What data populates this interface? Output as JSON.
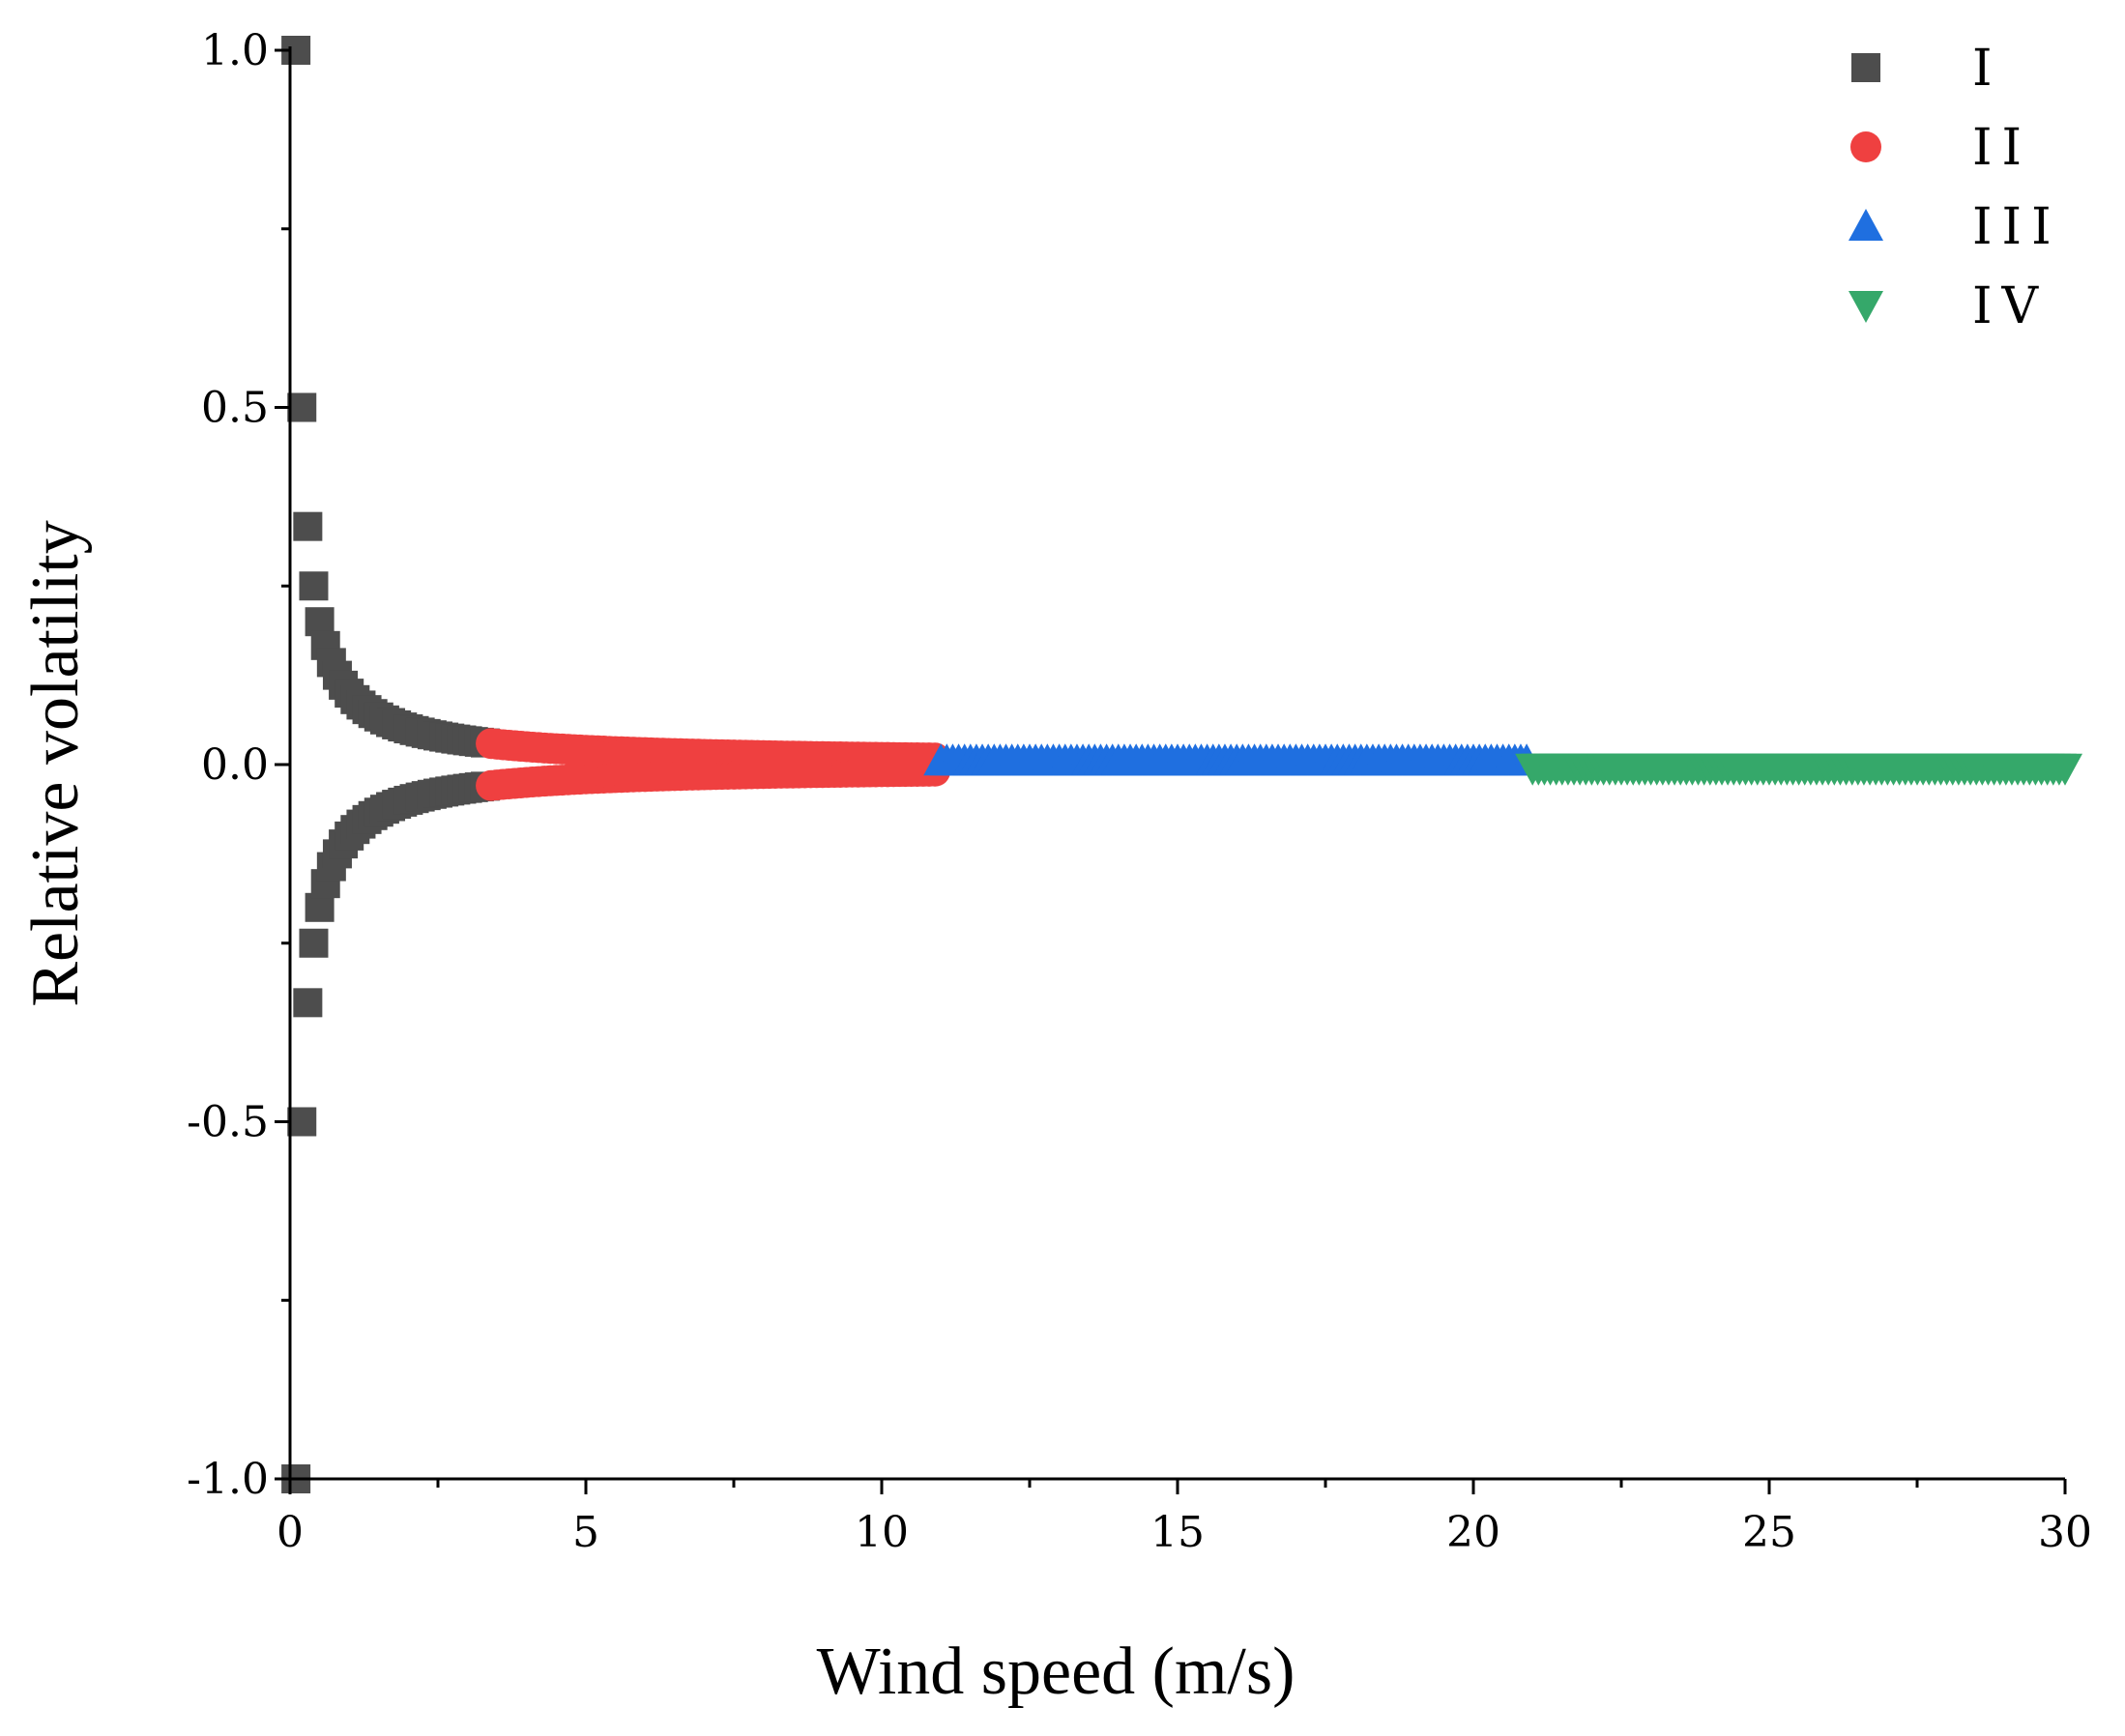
{
  "chart_data": {
    "type": "scatter",
    "title": "",
    "xlabel": "Wind speed (m/s)",
    "ylabel": "Relative volatility",
    "xlim": [
      0,
      30
    ],
    "ylim": [
      -1.0,
      1.0
    ],
    "xticks": [
      "0",
      "5",
      "10",
      "15",
      "20",
      "25",
      "30"
    ],
    "yticks": [
      "-1.0",
      "-0.5",
      "0.0",
      "0.5",
      "1.0"
    ],
    "grid": false,
    "legend_position": "top-right",
    "series": [
      {
        "name": "I",
        "marker": "square",
        "color": "#4d4d4d",
        "x_range": [
          0.1,
          3.3
        ],
        "step": 0.1,
        "formula": "y = ±0.1 / x",
        "points": [
          [
            0.1,
            1.0
          ],
          [
            0.1,
            -1.0
          ],
          [
            0.2,
            0.5
          ],
          [
            0.2,
            -0.5
          ],
          [
            0.3,
            0.333
          ],
          [
            0.3,
            -0.333
          ],
          [
            0.4,
            0.25
          ],
          [
            0.4,
            -0.25
          ],
          [
            0.5,
            0.2
          ],
          [
            0.5,
            -0.2
          ],
          [
            1.0,
            0.1
          ],
          [
            1.0,
            -0.1
          ],
          [
            2.0,
            0.05
          ],
          [
            2.0,
            -0.05
          ],
          [
            3.3,
            0.03
          ],
          [
            3.3,
            -0.03
          ]
        ]
      },
      {
        "name": "II",
        "marker": "circle",
        "color": "#ef4040",
        "x_range": [
          3.4,
          10.9
        ],
        "step": 0.1,
        "formula": "y = ±0.1 / x",
        "points": [
          [
            3.4,
            0.029
          ],
          [
            3.4,
            -0.029
          ],
          [
            5.0,
            0.02
          ],
          [
            5.0,
            -0.02
          ],
          [
            10.9,
            0.009
          ],
          [
            10.9,
            -0.009
          ]
        ]
      },
      {
        "name": "III",
        "marker": "triangle-up",
        "color": "#1f6fe0",
        "x_range": [
          11.0,
          20.9
        ],
        "step": 0.1,
        "formula": "y = 0.005",
        "points": [
          [
            11.0,
            0.005
          ],
          [
            15.0,
            0.005
          ],
          [
            20.9,
            0.005
          ]
        ]
      },
      {
        "name": "IV",
        "marker": "triangle-down",
        "color": "#35a86a",
        "x_range": [
          21.0,
          30.0
        ],
        "step": 0.1,
        "formula": "y = -0.005",
        "points": [
          [
            21.0,
            -0.005
          ],
          [
            25.0,
            -0.005
          ],
          [
            30.0,
            -0.005
          ]
        ]
      }
    ]
  }
}
